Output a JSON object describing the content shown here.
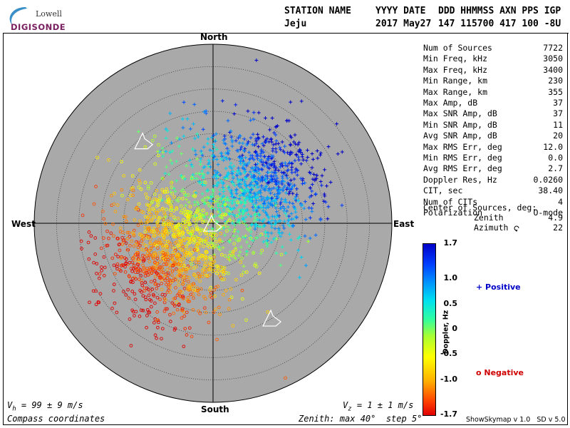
{
  "logo": {
    "line1": "Lowell",
    "line2": "DIGISONDE"
  },
  "header": {
    "labels": [
      "STATION NAME",
      "YYYY DATE",
      "DDD HHMMSS AXN PPS IGP"
    ],
    "values": [
      "Jeju",
      "2017 May27",
      "147 115700 417 100 -8U"
    ]
  },
  "compass": {
    "north": "North",
    "south": "South",
    "east": "East",
    "west": "West"
  },
  "stats": [
    {
      "label": "Num of Sources",
      "value": "7722"
    },
    {
      "label": "Min Freq, kHz",
      "value": "3050"
    },
    {
      "label": "Max Freq, kHz",
      "value": "3400"
    },
    {
      "label": "Min Range, km",
      "value": "230"
    },
    {
      "label": "Max Range, km",
      "value": "355"
    },
    {
      "label": "Max Amp, dB",
      "value": "37"
    },
    {
      "label": "Max SNR Amp, dB",
      "value": "37"
    },
    {
      "label": "Min SNR Amp, dB",
      "value": "11"
    },
    {
      "label": "Avg SNR Amp, dB",
      "value": "20"
    },
    {
      "label": "Max RMS Err, deg",
      "value": "12.0"
    },
    {
      "label": "Min RMS Err, deg",
      "value": "0.0"
    },
    {
      "label": "Avg RMS Err, deg",
      "value": "2.7"
    },
    {
      "label": "Doppler Res, Hz",
      "value": "0.0260"
    },
    {
      "label": "CIT, sec",
      "value": "38.40"
    },
    {
      "label": "Num of CITs",
      "value": "4"
    },
    {
      "label": "Polarization",
      "value": "O-mode"
    }
  ],
  "center": {
    "title": "Center of Sources, deg:",
    "zenith_label": "Zenith",
    "zenith_value": "4.9",
    "azimuth_label": "Azimuth",
    "azimuth_value": "22"
  },
  "colorbar": {
    "title": "Doppler, Hz",
    "ticks": [
      "1.7",
      "1.0",
      "0.5",
      "0",
      "-0.5",
      "-1.0",
      "-1.7"
    ],
    "tick_values": [
      1.7,
      1.0,
      0.5,
      0,
      -0.5,
      -1.0,
      -1.7
    ],
    "range": [
      -1.7,
      1.7
    ]
  },
  "legend": {
    "positive": "+ Positive",
    "negative": "o Negative",
    "positive_color": "#0000c8",
    "negative_color": "#d00000"
  },
  "footer": {
    "vh_sym": "V",
    "vh_sub": "h",
    "vh_rest": " = 99 ± 9 m/s",
    "vz_sym": "V",
    "vz_sub": "z",
    "vz_rest": " = 1 ± 1 m/s",
    "coords": "Compass coordinates",
    "zenith": "Zenith: max 40°  step 5°",
    "version": "ShowSkymap v 1.0   SD v 5.0"
  },
  "chart_data": {
    "type": "scatter",
    "title": "",
    "projection": "polar skymap (zenith angle / azimuth, compass coordinates)",
    "zenith_max_deg": 40,
    "zenith_step_deg": 5,
    "num_sources": 7722,
    "center_of_sources": {
      "zenith_deg": 4.9,
      "azimuth_deg": 22
    },
    "color_scale": {
      "variable": "Doppler, Hz",
      "min": -1.7,
      "max": 1.7
    },
    "source_clusters": [
      {
        "name": "positive Doppler (+)",
        "zenith_deg": 14,
        "azimuth_deg": 55,
        "doppler_hz": 0.9,
        "spread_deg": 6
      },
      {
        "name": "mixed",
        "zenith_deg": 6,
        "azimuth_deg": 350,
        "doppler_hz": 0.1,
        "spread_deg": 9
      },
      {
        "name": "negative Doppler (o)",
        "zenith_deg": 12,
        "azimuth_deg": 235,
        "doppler_hz": -0.6,
        "spread_deg": 7
      }
    ],
    "velocity_arrows": [
      {
        "zenith_deg": 0,
        "azimuth_deg": 0
      },
      {
        "zenith_deg": 24,
        "azimuth_deg": 320
      },
      {
        "zenith_deg": 25,
        "azimuth_deg": 148
      }
    ],
    "bulk_velocity": {
      "vh_m_s": 99,
      "vh_err_m_s": 9,
      "vz_m_s": 1,
      "vz_err_m_s": 1
    }
  }
}
